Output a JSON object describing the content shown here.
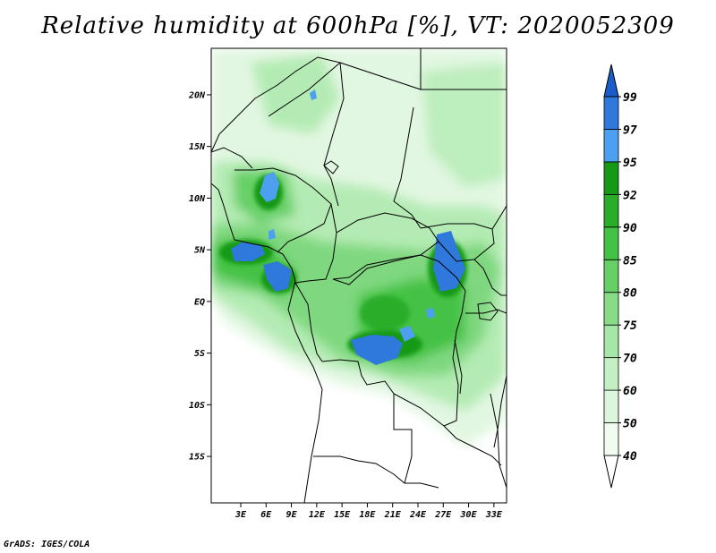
{
  "title": "Relative humidity at 600hPa [%], VT: 2020052309",
  "credit": "GrADS: IGES/COLA",
  "map": {
    "lon_range": [
      -0.5,
      34.5
    ],
    "lat_range": [
      -19.5,
      24.5
    ],
    "lon_ticks": [
      {
        "value": 3,
        "label": "3E"
      },
      {
        "value": 6,
        "label": "6E"
      },
      {
        "value": 9,
        "label": "9E"
      },
      {
        "value": 12,
        "label": "12E"
      },
      {
        "value": 15,
        "label": "15E"
      },
      {
        "value": 18,
        "label": "18E"
      },
      {
        "value": 21,
        "label": "21E"
      },
      {
        "value": 24,
        "label": "24E"
      },
      {
        "value": 27,
        "label": "27E"
      },
      {
        "value": 30,
        "label": "30E"
      },
      {
        "value": 33,
        "label": "33E"
      }
    ],
    "lat_ticks": [
      {
        "value": 20,
        "label": "20N"
      },
      {
        "value": 15,
        "label": "15N"
      },
      {
        "value": 10,
        "label": "10N"
      },
      {
        "value": 5,
        "label": "5N"
      },
      {
        "value": 0,
        "label": "EQ"
      },
      {
        "value": -5,
        "label": "5S"
      },
      {
        "value": -10,
        "label": "10S"
      },
      {
        "value": -15,
        "label": "15S"
      }
    ]
  },
  "colorbar": {
    "levels": [
      {
        "label": "40",
        "color": "#f0fcf0"
      },
      {
        "label": "50",
        "color": "#dcf6dc"
      },
      {
        "label": "60",
        "color": "#c3efc3"
      },
      {
        "label": "70",
        "color": "#a6e6a6"
      },
      {
        "label": "75",
        "color": "#88dc88"
      },
      {
        "label": "80",
        "color": "#66d066"
      },
      {
        "label": "85",
        "color": "#44c244"
      },
      {
        "label": "90",
        "color": "#2aae2a"
      },
      {
        "label": "92",
        "color": "#169a16"
      },
      {
        "label": "95",
        "color": "#4d9ff0"
      },
      {
        "label": "97",
        "color": "#2f78dc"
      },
      {
        "label": "99",
        "color": "#1a5cc8"
      }
    ],
    "lowest_color": "#ffffff"
  }
}
